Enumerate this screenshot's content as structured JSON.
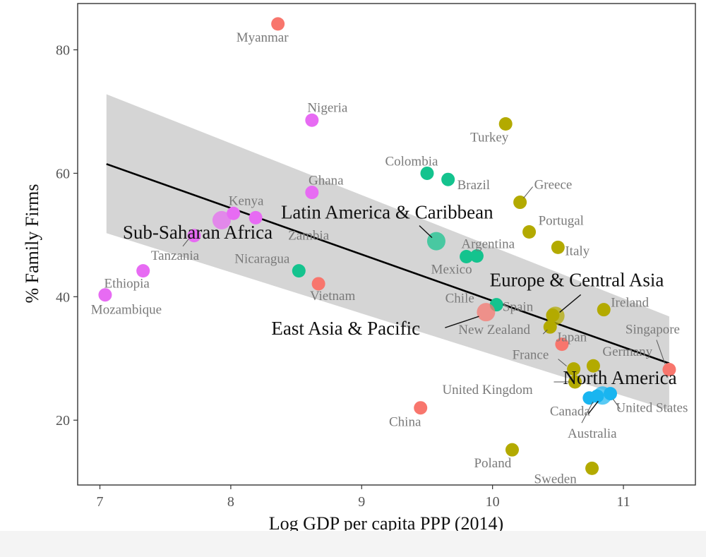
{
  "chart_data": {
    "type": "scatter",
    "title": "",
    "xlabel": "Log GDP per capita PPP (2014)",
    "ylabel": "% Family Firms",
    "xlim": [
      6.83,
      11.55
    ],
    "ylim": [
      9.5,
      87.5
    ],
    "xticks": [
      7,
      8,
      9,
      10,
      11
    ],
    "yticks": [
      20,
      40,
      60,
      80
    ],
    "grid": false,
    "legend": "none",
    "colors": {
      "south_asia": "#F8766D",
      "europe_central_asia": "#B3AA00",
      "latin_america": "#14C38E",
      "north_america": "#19B5F0",
      "sub_saharan_africa": "#E76BF3",
      "confidence_band": "#d3d3d3",
      "fit_line": "#000000",
      "leader_line": "#555555"
    },
    "regression": {
      "x": [
        7.05,
        11.35
      ],
      "y": [
        61.5,
        29.2
      ],
      "band_upper": [
        72.8,
        36.8
      ],
      "band_lower": [
        50.3,
        21.6
      ]
    },
    "points": [
      {
        "name": "Myanmar",
        "x": 8.36,
        "y": 84.2,
        "color": "south_asia"
      },
      {
        "name": "Nigeria",
        "x": 8.62,
        "y": 68.6,
        "color": "sub_saharan_africa"
      },
      {
        "name": "Ghana",
        "x": 8.62,
        "y": 56.9,
        "color": "sub_saharan_africa"
      },
      {
        "name": "Kenya",
        "x": 8.02,
        "y": 53.5,
        "color": "sub_saharan_africa"
      },
      {
        "name": "Zambia",
        "x": 8.19,
        "y": 52.8,
        "color": "sub_saharan_africa"
      },
      {
        "name": "Tanzania",
        "x": 7.72,
        "y": 49.9,
        "color": "sub_saharan_africa"
      },
      {
        "name": "Ethiopia",
        "x": 7.33,
        "y": 44.2,
        "color": "sub_saharan_africa"
      },
      {
        "name": "Mozambique",
        "x": 7.04,
        "y": 40.3,
        "color": "sub_saharan_africa"
      },
      {
        "name": "Nicaragua",
        "x": 8.52,
        "y": 44.2,
        "color": "latin_america"
      },
      {
        "name": "Vietnam",
        "x": 8.67,
        "y": 42.1,
        "color": "south_asia"
      },
      {
        "name": "Colombia",
        "x": 9.5,
        "y": 60.0,
        "color": "latin_america"
      },
      {
        "name": "Brazil",
        "x": 9.66,
        "y": 59.0,
        "color": "latin_america"
      },
      {
        "name": "Argentina",
        "x": 9.88,
        "y": 46.6,
        "color": "latin_america"
      },
      {
        "name": "Mexico",
        "x": 9.8,
        "y": 46.5,
        "color": "latin_america"
      },
      {
        "name": "Chile",
        "x": 10.03,
        "y": 38.7,
        "color": "latin_america"
      },
      {
        "name": "China",
        "x": 9.45,
        "y": 22.0,
        "color": "south_asia"
      },
      {
        "name": "Turkey",
        "x": 10.1,
        "y": 68.0,
        "color": "europe_central_asia"
      },
      {
        "name": "Greece",
        "x": 10.21,
        "y": 55.3,
        "color": "europe_central_asia"
      },
      {
        "name": "Portugal",
        "x": 10.28,
        "y": 50.5,
        "color": "europe_central_asia"
      },
      {
        "name": "Italy",
        "x": 10.5,
        "y": 48.0,
        "color": "europe_central_asia"
      },
      {
        "name": "Spain",
        "x": 10.46,
        "y": 37.0,
        "color": "europe_central_asia"
      },
      {
        "name": "New Zealand",
        "x": 10.44,
        "y": 35.1,
        "color": "europe_central_asia"
      },
      {
        "name": "Japan",
        "x": 10.53,
        "y": 32.3,
        "color": "south_asia"
      },
      {
        "name": "Ireland",
        "x": 10.85,
        "y": 37.9,
        "color": "europe_central_asia"
      },
      {
        "name": "Singapore",
        "x": 11.35,
        "y": 28.2,
        "color": "south_asia"
      },
      {
        "name": "France",
        "x": 10.62,
        "y": 28.3,
        "color": "europe_central_asia"
      },
      {
        "name": "Germany",
        "x": 10.77,
        "y": 28.8,
        "color": "europe_central_asia"
      },
      {
        "name": "United Kingdom",
        "x": 10.63,
        "y": 26.2,
        "color": "europe_central_asia"
      },
      {
        "name": "Canada",
        "x": 10.74,
        "y": 23.6,
        "color": "north_america"
      },
      {
        "name": "Australia",
        "x": 10.8,
        "y": 23.9,
        "color": "north_america"
      },
      {
        "name": "United States",
        "x": 10.9,
        "y": 24.3,
        "color": "north_america"
      },
      {
        "name": "Poland",
        "x": 10.15,
        "y": 15.2,
        "color": "europe_central_asia"
      },
      {
        "name": "Sweden",
        "x": 10.76,
        "y": 12.2,
        "color": "europe_central_asia"
      }
    ],
    "region_labels": [
      {
        "name": "Sub-Saharan Africa",
        "x": 7.93,
        "y": 52.4,
        "color": "sub_saharan_africa"
      },
      {
        "name": "Latin America & Caribbean",
        "x": 9.57,
        "y": 49.0,
        "color": "latin_america"
      },
      {
        "name": "Europe & Central Asia",
        "x": 10.48,
        "y": 36.9,
        "color": "europe_central_asia"
      },
      {
        "name": "East Asia & Pacific",
        "x": 9.95,
        "y": 37.5,
        "color": "south_asia"
      },
      {
        "name": "North America",
        "x": 10.84,
        "y": 24.0,
        "color": "north_america"
      }
    ]
  }
}
